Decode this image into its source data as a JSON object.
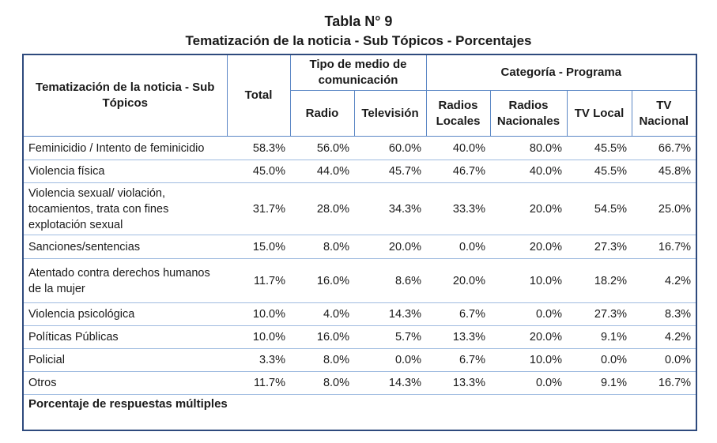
{
  "title": "Tabla N° 9",
  "subtitle": "Tematización de la noticia - Sub Tópicos  - Porcentajes",
  "table": {
    "header": {
      "topic": "Tematización de la noticia - Sub Tópicos",
      "total": "Total",
      "group_1": "Tipo de medio de comunicación",
      "group_2": "Categoría - Programa",
      "columns": [
        "Radio",
        "Televisión",
        "Radios Locales",
        "Radios Nacionales",
        "TV Local",
        "TV Nacional"
      ]
    },
    "rows": [
      [
        "Feminicidio / Intento de feminicidio",
        "58.3%",
        "56.0%",
        "60.0%",
        "40.0%",
        "80.0%",
        "45.5%",
        "66.7%"
      ],
      [
        "Violencia física",
        "45.0%",
        "44.0%",
        "45.7%",
        "46.7%",
        "40.0%",
        "45.5%",
        "45.8%"
      ],
      [
        "Violencia sexual/ violación, tocamientos, trata con fines explotación sexual",
        "31.7%",
        "28.0%",
        "34.3%",
        "33.3%",
        "20.0%",
        "54.5%",
        "25.0%"
      ],
      [
        "Sanciones/sentencias",
        "15.0%",
        "8.0%",
        "20.0%",
        "0.0%",
        "20.0%",
        "27.3%",
        "16.7%"
      ],
      [
        "Atentado contra derechos humanos de la mujer",
        "11.7%",
        "16.0%",
        "8.6%",
        "20.0%",
        "10.0%",
        "18.2%",
        "4.2%"
      ],
      [
        "Violencia psicológica",
        "10.0%",
        "4.0%",
        "14.3%",
        "6.7%",
        "0.0%",
        "27.3%",
        "8.3%"
      ],
      [
        "Políticas Públicas",
        "10.0%",
        "16.0%",
        "5.7%",
        "13.3%",
        "20.0%",
        "9.1%",
        "4.2%"
      ],
      [
        "Policial",
        "3.3%",
        "8.0%",
        "0.0%",
        "6.7%",
        "10.0%",
        "0.0%",
        "0.0%"
      ],
      [
        "Otros",
        "11.7%",
        "8.0%",
        "14.3%",
        "13.3%",
        "0.0%",
        "9.1%",
        "16.7%"
      ]
    ],
    "footer": "Porcentaje de respuestas múltiples"
  }
}
